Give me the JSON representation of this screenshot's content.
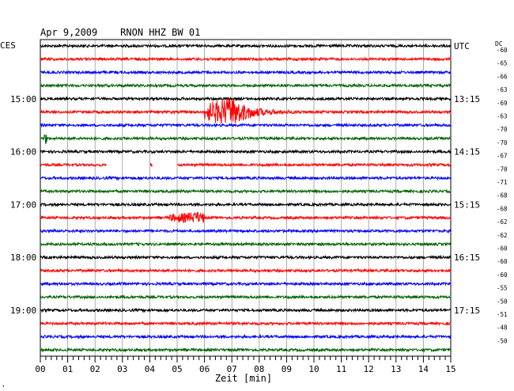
{
  "chart_data": {
    "type": "line",
    "title": "Apr 9,2009    RNON HHZ BW 01",
    "xlabel": "Zeit [min]",
    "left_timezone": "CES",
    "right_timezone": "UTC",
    "dc_label": "DC",
    "xlim": [
      0,
      15
    ],
    "x_ticks": [
      "00",
      "01",
      "02",
      "03",
      "04",
      "05",
      "06",
      "07",
      "08",
      "09",
      "10",
      "11",
      "12",
      "13",
      "14",
      "15"
    ],
    "grid": true,
    "trace_colors": [
      "#000000",
      "#ff0000",
      "#0000ff",
      "#006400"
    ],
    "left_time_labels": [
      {
        "trace": 4,
        "label": "15:00"
      },
      {
        "trace": 8,
        "label": "16:00"
      },
      {
        "trace": 12,
        "label": "17:00"
      },
      {
        "trace": 16,
        "label": "18:00"
      },
      {
        "trace": 20,
        "label": "19:00"
      }
    ],
    "right_time_labels": [
      {
        "trace": 0,
        "label": "UTC"
      },
      {
        "trace": 4,
        "label": "13:15"
      },
      {
        "trace": 8,
        "label": "14:15"
      },
      {
        "trace": 12,
        "label": "15:15"
      },
      {
        "trace": 16,
        "label": "16:15"
      },
      {
        "trace": 20,
        "label": "17:15"
      }
    ],
    "dc_offsets": [
      "-60",
      "-65",
      "-66",
      "-63",
      "-69",
      "-63",
      "-70",
      "-70",
      "-67",
      "-70",
      "-71",
      "-68",
      "-68",
      "-62",
      "-62",
      "-60",
      "-60",
      "-60",
      "-55",
      "-50",
      "-51",
      "-48",
      "-50"
    ],
    "traces": [
      {
        "amp": 1.0
      },
      {
        "amp": 1.0
      },
      {
        "amp": 1.0
      },
      {
        "amp": 1.0
      },
      {
        "amp": 1.0
      },
      {
        "amp": 1.0,
        "event": {
          "start": 6.0,
          "end": 10.5,
          "peak": 7.0,
          "amplitude": 18
        }
      },
      {
        "amp": 1.0
      },
      {
        "amp": 1.0,
        "spike": 0.2
      },
      {
        "amp": 1.0
      },
      {
        "amp": 1.0,
        "gaps": [
          [
            2.4,
            3.0
          ],
          [
            3.0,
            4.0
          ],
          [
            4.1,
            5.0
          ]
        ]
      },
      {
        "amp": 1.0
      },
      {
        "amp": 1.0
      },
      {
        "amp": 1.0
      },
      {
        "amp": 1.0,
        "event": {
          "start": 4.7,
          "end": 6.0,
          "peak": 5.8,
          "amplitude": 6
        }
      },
      {
        "amp": 1.0
      },
      {
        "amp": 1.0
      },
      {
        "amp": 1.0
      },
      {
        "amp": 1.0
      },
      {
        "amp": 1.0
      },
      {
        "amp": 1.0
      },
      {
        "amp": 1.0
      },
      {
        "amp": 1.0
      },
      {
        "amp": 1.0
      },
      {
        "amp": 1.0
      }
    ]
  }
}
